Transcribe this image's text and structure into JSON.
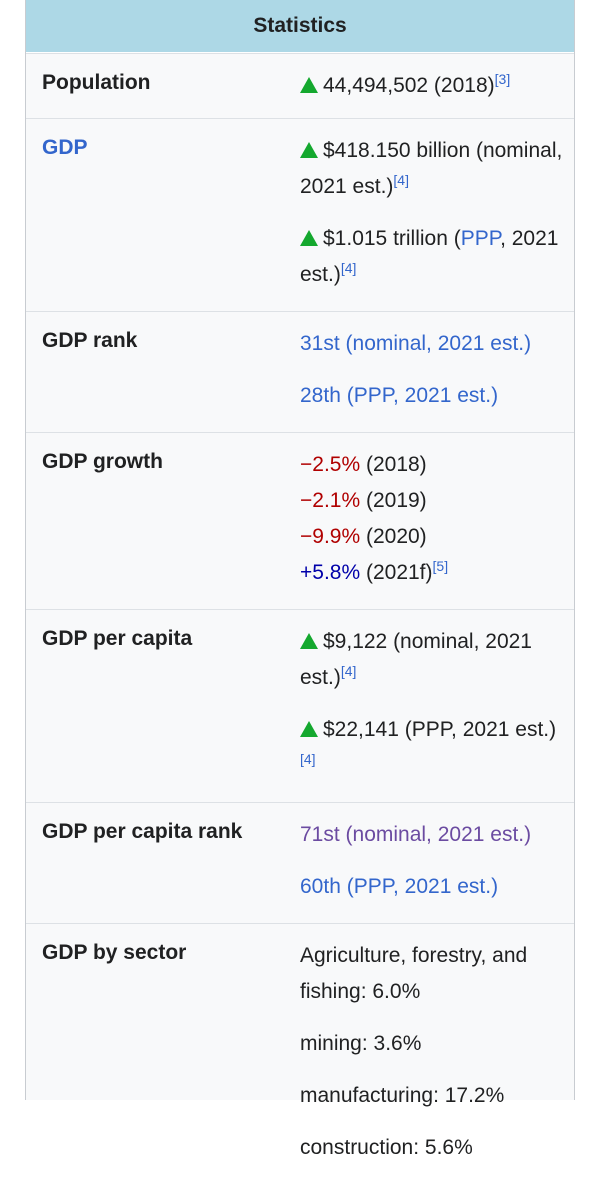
{
  "header": {
    "title": "Statistics"
  },
  "colors": {
    "header_bg": "#add8e6",
    "link": "#3366cc",
    "negative": "#b00000",
    "positive": "#0000aa",
    "up_arrow": "#14a82e"
  },
  "population": {
    "label": "Population",
    "value": "44,494,502 (2018)",
    "ref": "[3]"
  },
  "gdp": {
    "label": "GDP",
    "nominal": {
      "value": "$418.150 billion (nominal, 2021 est.)",
      "ref": "[4]"
    },
    "ppp": {
      "prefix": "$1.015 trillion (",
      "link": "PPP",
      "suffix": ", 2021 est.)",
      "ref": "[4]"
    }
  },
  "gdp_rank": {
    "label": "GDP rank",
    "nominal": "31st (nominal, 2021 est.)",
    "ppp": "28th (PPP, 2021 est.)"
  },
  "gdp_growth": {
    "label": "GDP growth",
    "items": [
      {
        "rate": "−2.5%",
        "year": " (2018)"
      },
      {
        "rate": "−2.1%",
        "year": " (2019)"
      },
      {
        "rate": "−9.9%",
        "year": " (2020)"
      },
      {
        "rate": "+5.8%",
        "year": " (2021f)",
        "ref": "[5]"
      }
    ]
  },
  "gdp_per_capita": {
    "label": "GDP per capita",
    "nominal": {
      "value": "$9,122 (nominal, 2021 est.)",
      "ref": "[4]"
    },
    "ppp": {
      "value": "$22,141 (PPP, 2021 est.)",
      "ref": "[4]"
    }
  },
  "gdp_per_capita_rank": {
    "label": "GDP per capita rank",
    "nominal": "71st (nominal, 2021 est.)",
    "ppp": "60th (PPP, 2021 est.)"
  },
  "gdp_by_sector": {
    "label": "GDP by sector",
    "items": [
      "Agriculture, forestry, and fishing: 6.0%",
      "mining: 3.6%",
      "manufacturing: 17.2%",
      "construction: 5.6%"
    ]
  }
}
